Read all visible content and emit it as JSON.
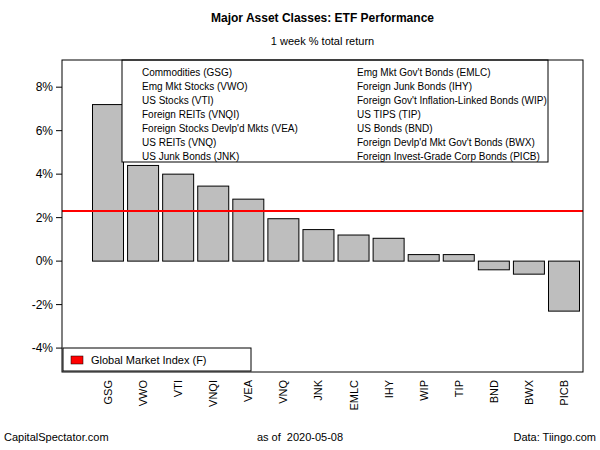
{
  "chart_data": {
    "type": "bar",
    "title": "Major Asset Classes: ETF Performance",
    "subtitle": "1 week % total return",
    "categories": [
      "GSG",
      "VWO",
      "VTI",
      "VNQI",
      "VEA",
      "VNQ",
      "JNK",
      "EMLC",
      "IHY",
      "WIP",
      "TIP",
      "BND",
      "BWX",
      "PICB"
    ],
    "category_labels": [
      "Commodities (GSG)",
      "Emg Mkt Stocks (VWO)",
      "US Stocks (VTI)",
      "Foreign REITs (VNQI)",
      "Foreign Stocks Devlp'd Mkts (VEA)",
      "US REITs (VNQ)",
      "US Junk Bonds (JNK)",
      "Emg Mkt Gov't Bonds (EMLC)",
      "Foreign Junk Bonds (IHY)",
      "Foreign Gov't Inflation-Linked Bonds (WIP)",
      "US TIPS (TIP)",
      "US Bonds (BND)",
      "Foreign Devlp'd Mkt Gov't Bonds (BWX)",
      "Foreign Invest-Grade Corp Bonds (PICB)"
    ],
    "values": [
      7.2,
      4.4,
      4.0,
      3.45,
      2.85,
      1.95,
      1.45,
      1.2,
      1.05,
      0.3,
      0.3,
      -0.4,
      -0.6,
      -2.3
    ],
    "color": "#bebebe",
    "ylim": [
      -5.1,
      9.25
    ],
    "yticks": [
      {
        "value": -4,
        "label": "-4%"
      },
      {
        "value": -2,
        "label": "-2%"
      },
      {
        "value": 0,
        "label": "0%"
      },
      {
        "value": 2,
        "label": "2%"
      },
      {
        "value": 4,
        "label": "4%"
      },
      {
        "value": 6,
        "label": "6%"
      },
      {
        "value": 8,
        "label": "8%"
      }
    ],
    "grid": false,
    "reference": {
      "name": "Global Market Index (F)",
      "value": 2.3,
      "color": "#ff0000"
    },
    "annotations": [
      "CapitalSpectator.com",
      "as of  2020-05-08",
      "Data: Tiingo.com"
    ]
  }
}
